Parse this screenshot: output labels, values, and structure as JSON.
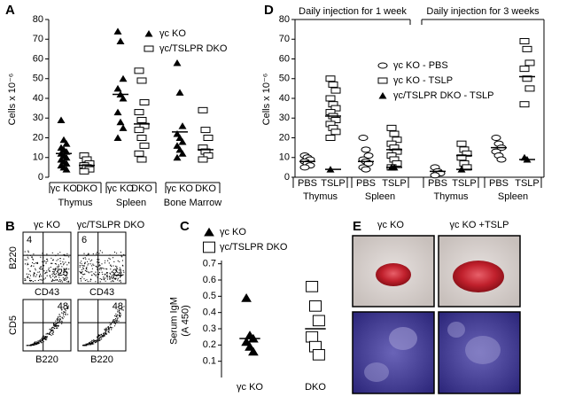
{
  "panel_labels": [
    "A",
    "B",
    "C",
    "D",
    "E"
  ],
  "chart_data": [
    {
      "type": "dot",
      "y_label": [
        "Cells x 10⁻⁶"
      ],
      "categories": [
        "γc KO",
        "DKO",
        "γc KO",
        "DKO",
        "γc KO",
        "DKO"
      ],
      "groups": [
        "Thymus",
        "Spleen",
        "Bone Marrow"
      ],
      "ylim": [
        0,
        80
      ],
      "yticks": [
        0,
        10,
        20,
        30,
        40,
        50,
        60,
        70,
        80
      ],
      "series": [
        {
          "name": "γc KO",
          "marker": "triangle",
          "color": "#000000",
          "values": [
            [
              29,
              19,
              17,
              15,
              14,
              13,
              12,
              11,
              10,
              9,
              8,
              7,
              6,
              5,
              4
            ],
            null,
            [
              74,
              69,
              50,
              45,
              42,
              40,
              33,
              28,
              25,
              20
            ],
            null,
            [
              58,
              43,
              26,
              22,
              20,
              18,
              16,
              14,
              12,
              10
            ],
            null
          ],
          "means": [
            12,
            null,
            42,
            null,
            23,
            null
          ]
        },
        {
          "name": "γc/TSLPR DKO",
          "marker": "rectangle",
          "color": "#000000",
          "values": [
            null,
            [
              11,
              9,
              7,
              6,
              5,
              4,
              3
            ],
            null,
            [
              54,
              49,
              38,
              33,
              29,
              26,
              24,
              20,
              16,
              12,
              9
            ],
            null,
            [
              34,
              24,
              20,
              15,
              13,
              11,
              9
            ]
          ],
          "means": [
            null,
            6,
            null,
            27,
            null,
            14
          ]
        }
      ]
    },
    {
      "type": "dot",
      "y_label": [
        "Serum IgM",
        "(A 450)"
      ],
      "categories": [
        "γc KO",
        "DKO"
      ],
      "ylim": [
        0,
        0.72
      ],
      "yticks": [
        0.1,
        0.2,
        0.3,
        0.4,
        0.5,
        0.6,
        0.7
      ],
      "series": [
        {
          "name": "γc KO",
          "marker": "triangle",
          "color": "#000000",
          "values": [
            [
              0.49,
              0.26,
              0.24,
              0.22,
              0.19,
              0.16
            ],
            null
          ],
          "means": [
            0.24,
            null
          ]
        },
        {
          "name": "γc/TSLPR DKO",
          "marker": "rectangle",
          "color": "#000000",
          "values": [
            null,
            [
              0.56,
              0.44,
              0.35,
              0.25,
              0.19,
              0.14
            ]
          ],
          "means": [
            null,
            0.3
          ]
        }
      ]
    },
    {
      "type": "dot",
      "y_label": [
        "Cells x 10⁻⁶"
      ],
      "categories": [
        "PBS",
        "TSLP",
        "PBS",
        "TSLP",
        "PBS",
        "TSLP",
        "PBS",
        "TSLP"
      ],
      "groups": [
        "Thymus",
        "Spleen",
        "Thymus",
        "Spleen"
      ],
      "periods": [
        "Daily injection for 1 week",
        "Daily injection for 3 weeks"
      ],
      "ylim": [
        0,
        80
      ],
      "yticks": [
        0,
        10,
        20,
        30,
        40,
        50,
        60,
        70,
        80
      ],
      "series": [
        {
          "name": "γc KO - PBS",
          "marker": "ellipse",
          "color": "#000000",
          "values": [
            [
              11,
              10,
              9,
              8,
              7,
              6,
              5
            ],
            null,
            [
              20,
              14,
              11,
              9,
              8,
              7,
              5,
              4
            ],
            null,
            [
              5,
              3,
              2,
              1
            ],
            null,
            [
              20,
              17,
              15,
              13,
              11,
              9
            ],
            null
          ],
          "means": [
            8,
            null,
            8,
            null,
            3,
            null,
            15,
            null
          ]
        },
        {
          "name": "γc KO - TSLP",
          "marker": "rectangle",
          "color": "#000000",
          "values": [
            null,
            [
              50,
              47,
              44,
              40,
              37,
              35,
              33,
              31,
              29,
              27,
              25,
              23,
              20
            ],
            null,
            [
              25,
              22,
              19,
              17,
              15,
              13,
              11,
              9,
              7,
              5
            ],
            null,
            [
              17,
              14,
              12,
              10,
              7,
              5
            ],
            null,
            [
              69,
              65,
              58,
              55,
              50,
              45,
              37
            ]
          ],
          "means": [
            null,
            31,
            null,
            14,
            null,
            11,
            null,
            51
          ]
        },
        {
          "name": "γc/TSLPR DKO - TSLP",
          "marker": "triangle",
          "color": "#000000",
          "values": [
            null,
            [
              4
            ],
            null,
            [
              5,
              5
            ],
            null,
            [
              4
            ],
            null,
            [
              10,
              9
            ]
          ],
          "means": [
            null,
            4,
            null,
            5,
            null,
            4,
            null,
            9
          ]
        }
      ]
    }
  ],
  "flow_panel": {
    "columns": [
      "γc KO",
      "γc/TSLPR DKO"
    ],
    "rows": [
      {
        "y_label": "B220",
        "x_labels": [
          "CD43",
          "CD43"
        ],
        "numbers": [
          [
            4,
            25
          ],
          [
            6,
            21
          ]
        ]
      },
      {
        "y_label": "CD5",
        "x_labels": [
          "B220",
          "B220"
        ],
        "numbers": [
          [
            48
          ],
          [
            48
          ]
        ]
      }
    ]
  },
  "image_panel": {
    "titles": [
      "γc KO",
      "γc KO  +TSLP"
    ]
  }
}
